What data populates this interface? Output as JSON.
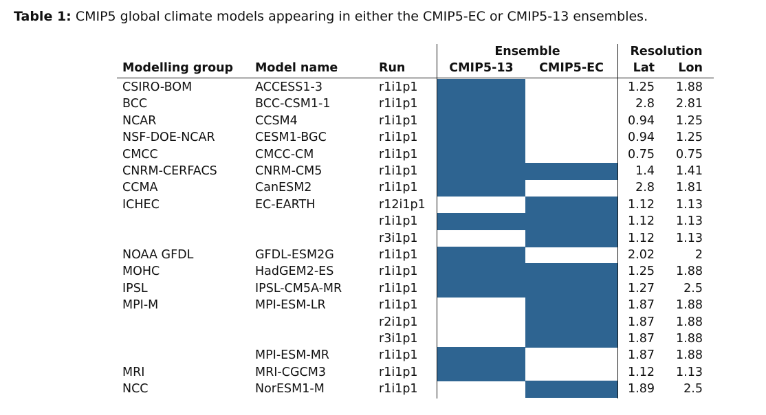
{
  "caption": {
    "label": "Table 1:",
    "text": "CMIP5 global climate models appearing in either the CMIP5-EC or CMIP5-13 ensembles."
  },
  "headers": {
    "group": "Modelling group",
    "model": "Model name",
    "run": "Run",
    "ensemble": "Ensemble",
    "cmip13": "CMIP5-13",
    "cmipEC": "CMIP5-EC",
    "resolution": "Resolution",
    "lat": "Lat",
    "lon": "Lon"
  },
  "colors": {
    "included": "#2e6491"
  },
  "rows": [
    {
      "group": "CSIRO-BOM",
      "model": "ACCESS1-3",
      "run": "r1i1p1",
      "cmip13": true,
      "cmipEC": false,
      "lat": "1.25",
      "lon": "1.88"
    },
    {
      "group": "BCC",
      "model": "BCC-CSM1-1",
      "run": "r1i1p1",
      "cmip13": true,
      "cmipEC": false,
      "lat": "2.8",
      "lon": "2.81"
    },
    {
      "group": "NCAR",
      "model": "CCSM4",
      "run": "r1i1p1",
      "cmip13": true,
      "cmipEC": false,
      "lat": "0.94",
      "lon": "1.25"
    },
    {
      "group": "NSF-DOE-NCAR",
      "model": "CESM1-BGC",
      "run": "r1i1p1",
      "cmip13": true,
      "cmipEC": false,
      "lat": "0.94",
      "lon": "1.25"
    },
    {
      "group": "CMCC",
      "model": "CMCC-CM",
      "run": "r1i1p1",
      "cmip13": true,
      "cmipEC": false,
      "lat": "0.75",
      "lon": "0.75"
    },
    {
      "group": "CNRM-CERFACS",
      "model": "CNRM-CM5",
      "run": "r1i1p1",
      "cmip13": true,
      "cmipEC": true,
      "lat": "1.4",
      "lon": "1.41"
    },
    {
      "group": "CCMA",
      "model": "CanESM2",
      "run": "r1i1p1",
      "cmip13": true,
      "cmipEC": false,
      "lat": "2.8",
      "lon": "1.81"
    },
    {
      "group": "ICHEC",
      "model": "EC-EARTH",
      "run": "r12i1p1",
      "cmip13": false,
      "cmipEC": true,
      "lat": "1.12",
      "lon": "1.13"
    },
    {
      "group": "",
      "model": "",
      "run": "r1i1p1",
      "cmip13": true,
      "cmipEC": true,
      "lat": "1.12",
      "lon": "1.13"
    },
    {
      "group": "",
      "model": "",
      "run": "r3i1p1",
      "cmip13": false,
      "cmipEC": true,
      "lat": "1.12",
      "lon": "1.13"
    },
    {
      "group": "NOAA GFDL",
      "model": "GFDL-ESM2G",
      "run": "r1i1p1",
      "cmip13": true,
      "cmipEC": false,
      "lat": "2.02",
      "lon": "2"
    },
    {
      "group": "MOHC",
      "model": "HadGEM2-ES",
      "run": "r1i1p1",
      "cmip13": true,
      "cmipEC": true,
      "lat": "1.25",
      "lon": "1.88"
    },
    {
      "group": "IPSL",
      "model": "IPSL-CM5A-MR",
      "run": "r1i1p1",
      "cmip13": true,
      "cmipEC": true,
      "lat": "1.27",
      "lon": "2.5"
    },
    {
      "group": "MPI-M",
      "model": "MPI-ESM-LR",
      "run": "r1i1p1",
      "cmip13": false,
      "cmipEC": true,
      "lat": "1.87",
      "lon": "1.88"
    },
    {
      "group": "",
      "model": "",
      "run": "r2i1p1",
      "cmip13": false,
      "cmipEC": true,
      "lat": "1.87",
      "lon": "1.88"
    },
    {
      "group": "",
      "model": "",
      "run": "r3i1p1",
      "cmip13": false,
      "cmipEC": true,
      "lat": "1.87",
      "lon": "1.88"
    },
    {
      "group": "",
      "model": "MPI-ESM-MR",
      "run": "r1i1p1",
      "cmip13": true,
      "cmipEC": false,
      "lat": "1.87",
      "lon": "1.88"
    },
    {
      "group": "MRI",
      "model": "MRI-CGCM3",
      "run": "r1i1p1",
      "cmip13": true,
      "cmipEC": false,
      "lat": "1.12",
      "lon": "1.13"
    },
    {
      "group": "NCC",
      "model": "NorESM1-M",
      "run": "r1i1p1",
      "cmip13": false,
      "cmipEC": true,
      "lat": "1.89",
      "lon": "2.5"
    }
  ]
}
